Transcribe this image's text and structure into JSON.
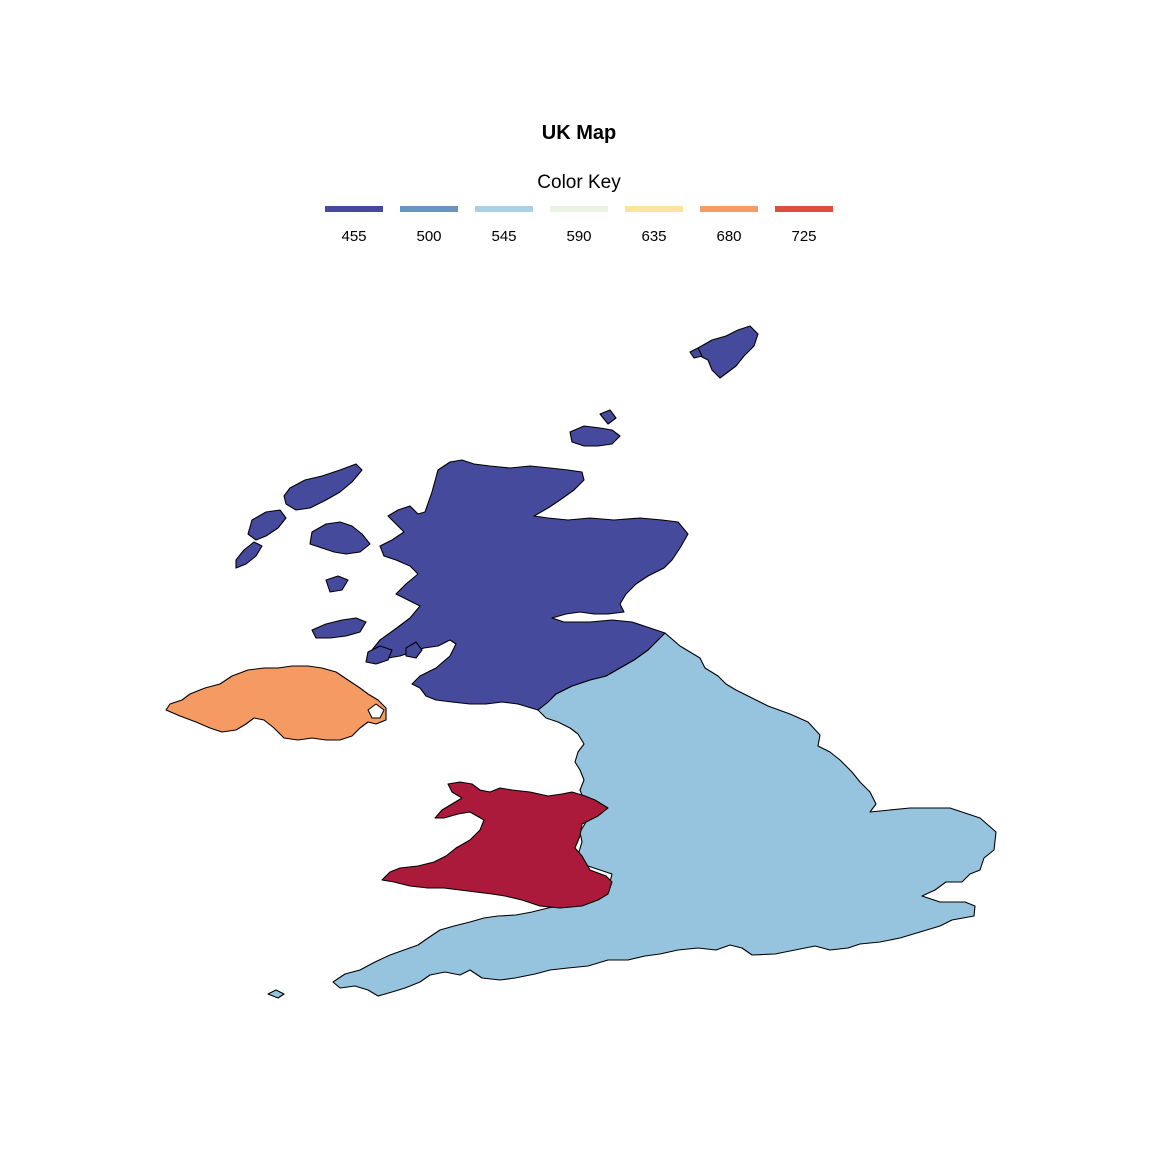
{
  "map": {
    "title": "UK Map"
  },
  "legend": {
    "title": "Color Key",
    "items": [
      {
        "label": "455",
        "color": "#464A9C"
      },
      {
        "label": "500",
        "color": "#6894C4"
      },
      {
        "label": "545",
        "color": "#A9D2E7"
      },
      {
        "label": "590",
        "color": "#E8F3E4"
      },
      {
        "label": "635",
        "color": "#FBE49D"
      },
      {
        "label": "680",
        "color": "#F59C65"
      },
      {
        "label": "725",
        "color": "#DD4F3C"
      }
    ]
  },
  "regions": [
    {
      "name": "Scotland",
      "color": "#464A9C"
    },
    {
      "name": "Northern Ireland",
      "color": "#F69A63"
    },
    {
      "name": "Wales",
      "color": "#AB1A3A"
    },
    {
      "name": "England",
      "color": "#96C3DE"
    }
  ]
}
